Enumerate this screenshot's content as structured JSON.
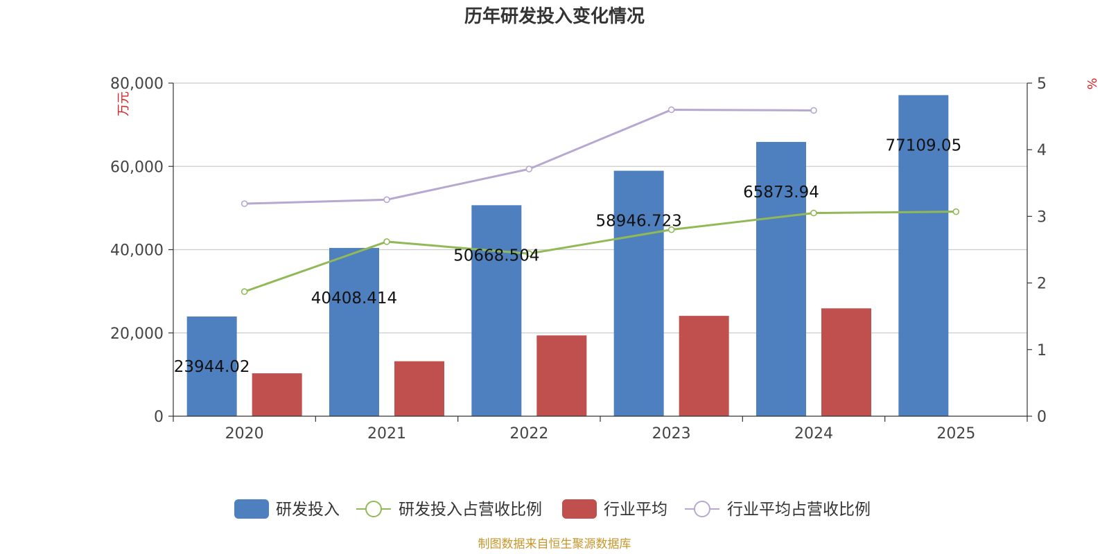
{
  "chart_data": {
    "type": "bar",
    "title": "历年研发投入变化情况",
    "categories": [
      "2020",
      "2021",
      "2022",
      "2023",
      "2024",
      "2025"
    ],
    "left_axis": {
      "unit": "万元",
      "ylim": [
        0,
        80000
      ],
      "ticks": [
        0,
        20000,
        40000,
        60000,
        80000
      ],
      "tick_labels": [
        "0",
        "20,000",
        "40,000",
        "60,000",
        "80,000"
      ]
    },
    "right_axis": {
      "unit": "%",
      "ylim": [
        0,
        5
      ],
      "ticks": [
        0,
        1,
        2,
        3,
        4,
        5
      ],
      "tick_labels": [
        "0",
        "1",
        "2",
        "3",
        "4",
        "5"
      ]
    },
    "grid": true,
    "series": [
      {
        "name": "研发投入",
        "kind": "bar",
        "axis": "left",
        "color": "#4e7fbf",
        "values": [
          23944.02,
          40408.414,
          50668.504,
          58946.723,
          65873.94,
          77109.05
        ],
        "labels": [
          "23944.02",
          "40408.414",
          "50668.504",
          "58946.723",
          "65873.94",
          "77109.05"
        ]
      },
      {
        "name": "研发投入占营收比例",
        "kind": "line",
        "axis": "right",
        "color": "#92b957",
        "values": [
          1.87,
          2.62,
          2.44,
          2.8,
          3.05,
          3.07
        ]
      },
      {
        "name": "行业平均",
        "kind": "bar",
        "axis": "left",
        "color": "#c0504d",
        "values": [
          10300,
          13200,
          19400,
          24100,
          25900,
          null
        ]
      },
      {
        "name": "行业平均占营收比例",
        "kind": "line",
        "axis": "right",
        "color": "#b6a8d0",
        "values": [
          3.19,
          3.25,
          3.71,
          4.6,
          4.59,
          null
        ]
      }
    ],
    "legend_position": "bottom-center"
  },
  "footer": "制图数据来自恒生聚源数据库"
}
